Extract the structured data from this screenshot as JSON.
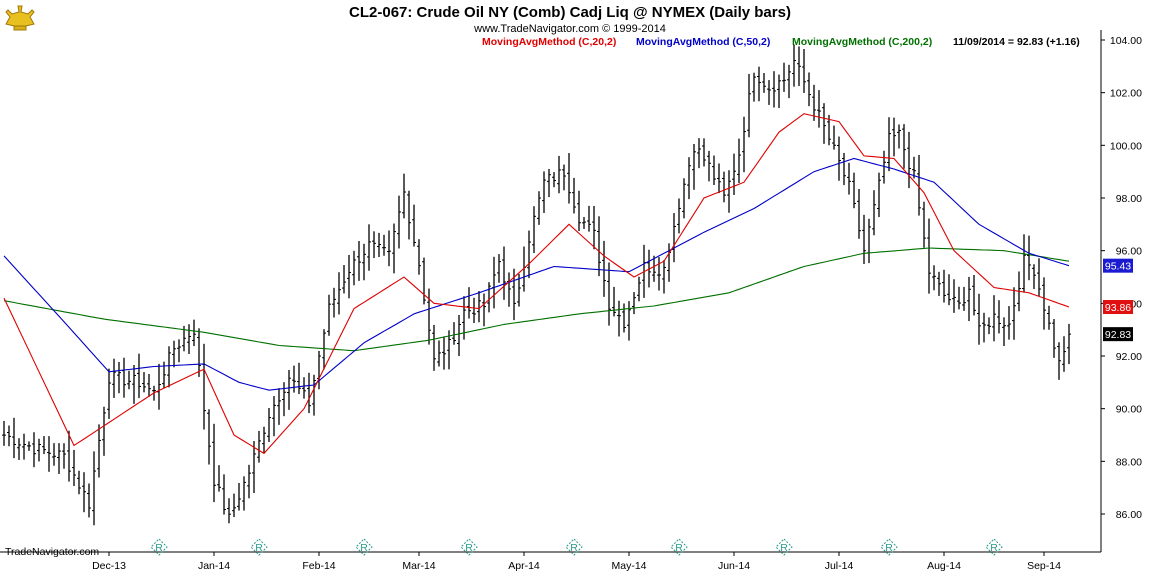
{
  "title": "CL2-067:  Crude Oil NY (Comb) Cadj Liq @ NYMEX  (Daily bars)",
  "copyright": "www.TradeNavigator.com © 1999-2014",
  "brand": "TradeNavigator.com",
  "legend": {
    "ma20": "MovingAvgMethod (C,20,2)",
    "ma50": "MovingAvgMethod (C,50,2)",
    "ma200": "MovingAvgMethod (C,200,2)",
    "last_quote": "11/09/2014 = 92.83 (+1.16)"
  },
  "colors": {
    "bars": "#000000",
    "ma20": "#e00000",
    "ma50": "#0000c8",
    "ma200": "#007000",
    "r_marker": "#2a9a8a"
  },
  "r_marker_glyph": "R",
  "chart_data": {
    "type": "ohlc-bar",
    "ylim": [
      85.0,
      104.5
    ],
    "yticks": [
      86,
      88,
      90,
      92,
      94,
      96,
      98,
      100,
      102,
      104
    ],
    "ytick_labels": [
      "86.00",
      "88.00",
      "90.00",
      "92.00",
      "94.00",
      "96.00",
      "98.00",
      "100.00",
      "102.00",
      "104.00"
    ],
    "x_labels": [
      "Dec-13",
      "Jan-14",
      "Feb-14",
      "Mar-14",
      "Apr-14",
      "May-14",
      "Jun-14",
      "Jul-14",
      "Aug-14",
      "Sep-14"
    ],
    "x_label_bar_index": [
      21,
      42,
      63,
      83,
      104,
      125,
      146,
      167,
      188,
      208
    ],
    "r_marker_bar_index": [
      31,
      51,
      72,
      93,
      114,
      135,
      156,
      177,
      198
    ],
    "right_tags": [
      {
        "value": 95.43,
        "label": "95.43",
        "series": "ma50"
      },
      {
        "value": 93.86,
        "label": "93.86",
        "series": "ma20"
      },
      {
        "value": 92.83,
        "label": "92.83",
        "series": "price"
      }
    ],
    "anchors": [
      {
        "i": 0,
        "c": 89.0
      },
      {
        "i": 6,
        "c": 88.5
      },
      {
        "i": 12,
        "c": 88.2
      },
      {
        "i": 17,
        "c": 86.4
      },
      {
        "i": 21,
        "c": 91.2
      },
      {
        "i": 27,
        "c": 91.0
      },
      {
        "i": 30,
        "c": 90.6
      },
      {
        "i": 34,
        "c": 92.3
      },
      {
        "i": 38,
        "c": 93.0
      },
      {
        "i": 40,
        "c": 90.0
      },
      {
        "i": 42,
        "c": 87.3
      },
      {
        "i": 45,
        "c": 85.8
      },
      {
        "i": 49,
        "c": 87.6
      },
      {
        "i": 53,
        "c": 89.8
      },
      {
        "i": 57,
        "c": 91.2
      },
      {
        "i": 61,
        "c": 90.2
      },
      {
        "i": 65,
        "c": 93.8
      },
      {
        "i": 69,
        "c": 95.3
      },
      {
        "i": 73,
        "c": 96.2
      },
      {
        "i": 77,
        "c": 95.8
      },
      {
        "i": 80,
        "c": 98.2
      },
      {
        "i": 83,
        "c": 95.5
      },
      {
        "i": 86,
        "c": 91.8
      },
      {
        "i": 89,
        "c": 92.4
      },
      {
        "i": 92,
        "c": 93.7
      },
      {
        "i": 96,
        "c": 93.9
      },
      {
        "i": 99,
        "c": 95.6
      },
      {
        "i": 102,
        "c": 93.8
      },
      {
        "i": 105,
        "c": 96.5
      },
      {
        "i": 108,
        "c": 98.6
      },
      {
        "i": 112,
        "c": 99.0
      },
      {
        "i": 115,
        "c": 97.3
      },
      {
        "i": 118,
        "c": 96.6
      },
      {
        "i": 121,
        "c": 94.0
      },
      {
        "i": 124,
        "c": 93.3
      },
      {
        "i": 128,
        "c": 95.4
      },
      {
        "i": 132,
        "c": 95.3
      },
      {
        "i": 135,
        "c": 97.8
      },
      {
        "i": 138,
        "c": 100.0
      },
      {
        "i": 141,
        "c": 99.2
      },
      {
        "i": 144,
        "c": 98.0
      },
      {
        "i": 147,
        "c": 99.7
      },
      {
        "i": 150,
        "c": 102.8
      },
      {
        "i": 153,
        "c": 102.2
      },
      {
        "i": 156,
        "c": 102.5
      },
      {
        "i": 158,
        "c": 103.2
      },
      {
        "i": 160,
        "c": 102.4
      },
      {
        "i": 163,
        "c": 101.1
      },
      {
        "i": 166,
        "c": 99.8
      },
      {
        "i": 169,
        "c": 98.4
      },
      {
        "i": 172,
        "c": 96.0
      },
      {
        "i": 174,
        "c": 97.6
      },
      {
        "i": 177,
        "c": 100.2
      },
      {
        "i": 179,
        "c": 100.4
      },
      {
        "i": 182,
        "c": 98.8
      },
      {
        "i": 185,
        "c": 95.2
      },
      {
        "i": 188,
        "c": 94.3
      },
      {
        "i": 191,
        "c": 93.9
      },
      {
        "i": 193,
        "c": 94.6
      },
      {
        "i": 195,
        "c": 92.9
      },
      {
        "i": 198,
        "c": 93.5
      },
      {
        "i": 201,
        "c": 93.2
      },
      {
        "i": 204,
        "c": 95.6
      },
      {
        "i": 206,
        "c": 95.3
      },
      {
        "i": 208,
        "c": 93.9
      },
      {
        "i": 211,
        "c": 91.7
      },
      {
        "i": 213,
        "c": 92.83
      }
    ],
    "ma_knots": {
      "ma20": [
        [
          0,
          94.2
        ],
        [
          14,
          88.6
        ],
        [
          30,
          90.6
        ],
        [
          40,
          91.5
        ],
        [
          46,
          89.0
        ],
        [
          52,
          88.3
        ],
        [
          60,
          90.0
        ],
        [
          70,
          93.8
        ],
        [
          80,
          95.0
        ],
        [
          86,
          94.0
        ],
        [
          95,
          93.8
        ],
        [
          105,
          95.5
        ],
        [
          113,
          97.0
        ],
        [
          120,
          95.8
        ],
        [
          126,
          95.0
        ],
        [
          132,
          95.6
        ],
        [
          140,
          98.0
        ],
        [
          148,
          98.6
        ],
        [
          155,
          100.5
        ],
        [
          160,
          101.2
        ],
        [
          167,
          100.9
        ],
        [
          172,
          99.6
        ],
        [
          178,
          99.5
        ],
        [
          184,
          98.2
        ],
        [
          190,
          96.0
        ],
        [
          198,
          94.6
        ],
        [
          205,
          94.4
        ],
        [
          213,
          93.86
        ]
      ],
      "ma50": [
        [
          0,
          95.8
        ],
        [
          12,
          93.3
        ],
        [
          21,
          91.4
        ],
        [
          30,
          91.6
        ],
        [
          40,
          91.7
        ],
        [
          47,
          91.0
        ],
        [
          53,
          90.7
        ],
        [
          62,
          90.9
        ],
        [
          72,
          92.5
        ],
        [
          82,
          93.6
        ],
        [
          95,
          94.4
        ],
        [
          110,
          95.4
        ],
        [
          125,
          95.2
        ],
        [
          140,
          96.7
        ],
        [
          150,
          97.6
        ],
        [
          162,
          99.0
        ],
        [
          170,
          99.5
        ],
        [
          178,
          99.1
        ],
        [
          186,
          98.6
        ],
        [
          195,
          97.0
        ],
        [
          205,
          95.9
        ],
        [
          213,
          95.43
        ]
      ],
      "ma200": [
        [
          0,
          94.1
        ],
        [
          20,
          93.4
        ],
        [
          40,
          92.9
        ],
        [
          55,
          92.4
        ],
        [
          70,
          92.2
        ],
        [
          85,
          92.6
        ],
        [
          100,
          93.2
        ],
        [
          115,
          93.6
        ],
        [
          130,
          93.9
        ],
        [
          145,
          94.4
        ],
        [
          160,
          95.4
        ],
        [
          172,
          95.9
        ],
        [
          185,
          96.1
        ],
        [
          200,
          96.0
        ],
        [
          213,
          95.6
        ]
      ]
    }
  }
}
